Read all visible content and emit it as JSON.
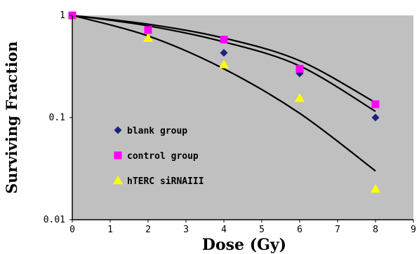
{
  "chart_data": {
    "type": "scatter",
    "title": "",
    "xlabel": "Dose (Gy)",
    "ylabel": "Surviving Fraction",
    "xlim": [
      0,
      9
    ],
    "ylim": [
      0.01,
      1
    ],
    "yscale": "log",
    "x_ticks": [
      "0",
      "1",
      "2",
      "3",
      "4",
      "5",
      "6",
      "7",
      "8",
      "9"
    ],
    "y_ticks": [
      "0.01",
      "0.1",
      "1"
    ],
    "grid": false,
    "legend_position": "left-bottom inside plot",
    "plot_background": "#c0c0c0",
    "series": [
      {
        "name": "blank group",
        "marker": "diamond",
        "color": "#1a237e",
        "points": [
          [
            0,
            1.0
          ],
          [
            2,
            0.72
          ],
          [
            4,
            0.43
          ],
          [
            6,
            0.27
          ],
          [
            8,
            0.1
          ]
        ],
        "fit": [
          [
            0,
            1.0
          ],
          [
            2,
            0.79
          ],
          [
            4,
            0.55
          ],
          [
            6,
            0.32
          ],
          [
            8,
            0.115
          ]
        ]
      },
      {
        "name": "control group",
        "marker": "square",
        "color": "#ff00ff",
        "points": [
          [
            0,
            1.0
          ],
          [
            2,
            0.72
          ],
          [
            4,
            0.58
          ],
          [
            6,
            0.3
          ],
          [
            8,
            0.135
          ]
        ],
        "fit": [
          [
            0,
            1.0
          ],
          [
            2,
            0.82
          ],
          [
            4,
            0.6
          ],
          [
            6,
            0.36
          ],
          [
            8,
            0.14
          ]
        ]
      },
      {
        "name": "hTERC siRNAIII",
        "marker": "triangle",
        "color": "#ffff00",
        "points": [
          [
            0,
            1.0
          ],
          [
            2,
            0.6
          ],
          [
            4,
            0.33
          ],
          [
            6,
            0.155
          ],
          [
            8,
            0.02
          ]
        ],
        "fit": [
          [
            0,
            1.0
          ],
          [
            2,
            0.63
          ],
          [
            4,
            0.3
          ],
          [
            6,
            0.11
          ],
          [
            8,
            0.03
          ]
        ]
      }
    ]
  }
}
